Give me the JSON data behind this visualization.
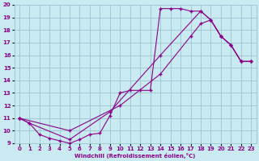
{
  "xlabel": "Windchill (Refroidissement éolien,°C)",
  "bg_color": "#c8eaf0",
  "line_color": "#8b008b",
  "grid_color": "#a0c8d8",
  "xlim": [
    -0.5,
    23.5
  ],
  "ylim": [
    9,
    20
  ],
  "xticks": [
    0,
    1,
    2,
    3,
    4,
    5,
    6,
    7,
    8,
    9,
    10,
    11,
    12,
    13,
    14,
    15,
    16,
    17,
    18,
    19,
    20,
    21,
    22,
    23
  ],
  "yticks": [
    9,
    10,
    11,
    12,
    13,
    14,
    15,
    16,
    17,
    18,
    19,
    20
  ],
  "line1_x": [
    0,
    1,
    2,
    3,
    4,
    5,
    6,
    7,
    8,
    9,
    10,
    11,
    12,
    13,
    14,
    15,
    16,
    17,
    18,
    19,
    20,
    21,
    22,
    23
  ],
  "line1_y": [
    11.0,
    10.6,
    9.7,
    9.4,
    9.2,
    9.0,
    9.3,
    9.7,
    9.8,
    11.2,
    13.0,
    13.2,
    13.2,
    13.2,
    19.7,
    19.7,
    19.7,
    19.5,
    19.5,
    18.8,
    17.5,
    16.8,
    15.5,
    15.5
  ],
  "line2_x": [
    0,
    1,
    5,
    9,
    14,
    18,
    19,
    20,
    21,
    22,
    23
  ],
  "line2_y": [
    11.0,
    10.6,
    9.3,
    11.5,
    16.0,
    19.5,
    18.8,
    17.5,
    16.8,
    15.5,
    15.5
  ],
  "line3_x": [
    0,
    5,
    10,
    14,
    17,
    18,
    19,
    20,
    21,
    22,
    23
  ],
  "line3_y": [
    11.0,
    10.0,
    12.0,
    14.5,
    17.5,
    18.5,
    18.8,
    17.5,
    16.8,
    15.5,
    15.5
  ]
}
